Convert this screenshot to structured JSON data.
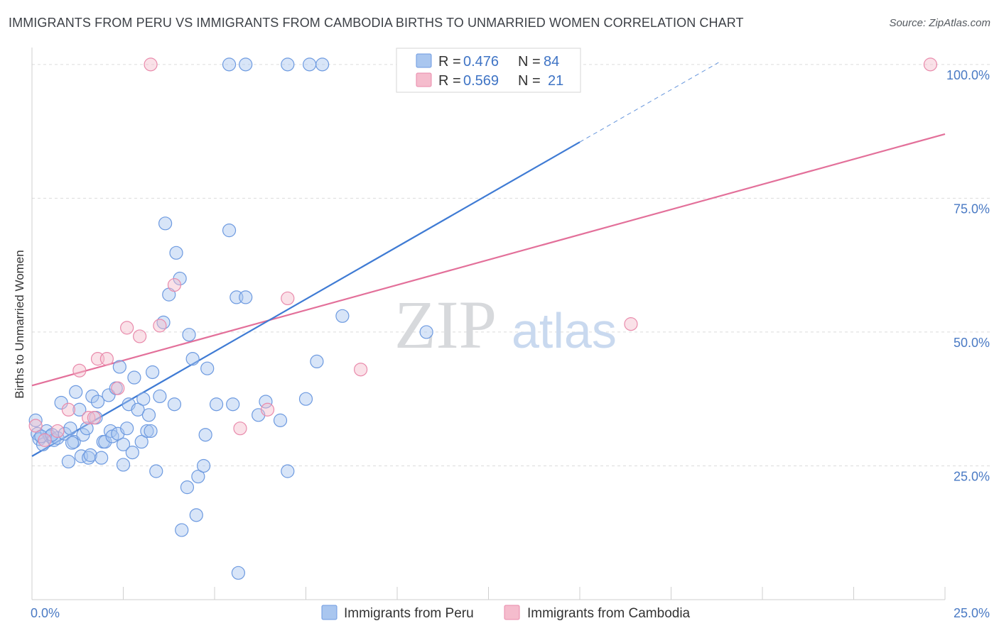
{
  "title": "IMMIGRANTS FROM PERU VS IMMIGRANTS FROM CAMBODIA BIRTHS TO UNMARRIED WOMEN CORRELATION CHART",
  "source": "Source: ZipAtlas.com",
  "watermark": {
    "part1": "ZIP",
    "part2": "atlas"
  },
  "colors": {
    "peru": "#3f7bd4",
    "cambodia": "#e3709a",
    "peru_fill": "#a9c6ef",
    "cambodia_fill": "#f5bccd"
  },
  "chart_data": {
    "type": "scatter",
    "title": "IMMIGRANTS FROM PERU VS IMMIGRANTS FROM CAMBODIA BIRTHS TO UNMARRIED WOMEN CORRELATION CHART",
    "xlabel": "",
    "ylabel": "Births to Unmarried Women",
    "xlim": [
      0,
      25
    ],
    "ylim": [
      0,
      102.5
    ],
    "x_tick_labels": [
      "0.0%",
      "25.0%"
    ],
    "y_tick_labels": [
      "25.0%",
      "50.0%",
      "75.0%",
      "100.0%"
    ],
    "y_ticks": [
      25,
      50,
      75,
      100
    ],
    "grid": true,
    "legend_position": "top-center",
    "legend": [
      {
        "label_r": "R =",
        "r": "0.476",
        "label_n": "N =",
        "n": "84"
      },
      {
        "label_r": "R =",
        "r": "0.569",
        "label_n": "N =",
        "n": "21"
      }
    ],
    "bottom_legend": [
      "Immigrants from Peru",
      "Immigrants from Cambodia"
    ],
    "series": [
      {
        "name": "Immigrants from Peru",
        "r": 0.476,
        "n": 84,
        "trend": {
          "x0": 0,
          "y0": 26.8,
          "x1": 15,
          "y1": 85.5,
          "dash_to_x": 18.8
        },
        "points": [
          [
            0.1,
            33.5
          ],
          [
            0.15,
            31.0
          ],
          [
            0.2,
            30.0
          ],
          [
            0.3,
            29.0
          ],
          [
            0.4,
            31.5
          ],
          [
            0.5,
            30.5
          ],
          [
            0.6,
            29.8
          ],
          [
            0.7,
            30.2
          ],
          [
            0.8,
            36.8
          ],
          [
            0.9,
            31.0
          ],
          [
            1.0,
            25.8
          ],
          [
            1.05,
            32.0
          ],
          [
            1.15,
            29.5
          ],
          [
            1.2,
            38.8
          ],
          [
            1.3,
            35.5
          ],
          [
            1.35,
            26.8
          ],
          [
            1.4,
            30.8
          ],
          [
            1.5,
            32.0
          ],
          [
            1.55,
            26.5
          ],
          [
            1.6,
            27.0
          ],
          [
            1.65,
            38.0
          ],
          [
            1.75,
            34.0
          ],
          [
            1.8,
            37.0
          ],
          [
            1.9,
            26.5
          ],
          [
            1.95,
            29.5
          ],
          [
            2.0,
            29.5
          ],
          [
            2.1,
            38.2
          ],
          [
            2.15,
            31.5
          ],
          [
            2.2,
            30.5
          ],
          [
            2.3,
            39.5
          ],
          [
            2.35,
            31.0
          ],
          [
            2.4,
            43.5
          ],
          [
            2.5,
            29.0
          ],
          [
            2.5,
            25.2
          ],
          [
            2.6,
            32.0
          ],
          [
            2.65,
            36.5
          ],
          [
            2.75,
            27.5
          ],
          [
            2.8,
            41.5
          ],
          [
            2.9,
            35.5
          ],
          [
            3.0,
            29.5
          ],
          [
            3.05,
            37.5
          ],
          [
            3.15,
            31.5
          ],
          [
            3.2,
            34.5
          ],
          [
            3.25,
            31.5
          ],
          [
            3.3,
            42.5
          ],
          [
            3.4,
            24.0
          ],
          [
            3.5,
            38.0
          ],
          [
            3.6,
            51.8
          ],
          [
            3.65,
            70.3
          ],
          [
            3.75,
            57.0
          ],
          [
            3.9,
            36.5
          ],
          [
            3.95,
            64.8
          ],
          [
            4.05,
            60.0
          ],
          [
            4.1,
            13.0
          ],
          [
            4.25,
            21.0
          ],
          [
            4.3,
            49.5
          ],
          [
            4.4,
            45.0
          ],
          [
            4.5,
            15.8
          ],
          [
            4.55,
            23.0
          ],
          [
            4.7,
            25.0
          ],
          [
            4.75,
            30.8
          ],
          [
            4.8,
            43.2
          ],
          [
            5.05,
            36.5
          ],
          [
            5.4,
            69.0
          ],
          [
            5.5,
            36.5
          ],
          [
            5.6,
            56.5
          ],
          [
            5.65,
            5.0
          ],
          [
            5.85,
            56.5
          ],
          [
            6.2,
            34.5
          ],
          [
            6.4,
            37.0
          ],
          [
            6.8,
            33.5
          ],
          [
            7.0,
            24.0
          ],
          [
            7.5,
            37.5
          ],
          [
            7.8,
            44.5
          ],
          [
            8.5,
            53.0
          ],
          [
            10.8,
            50.0
          ],
          [
            5.4,
            100.0
          ],
          [
            5.85,
            100.0
          ],
          [
            7.0,
            100.0
          ],
          [
            7.6,
            100.0
          ],
          [
            7.95,
            100.0
          ],
          [
            0.25,
            30.5
          ],
          [
            1.1,
            29.3
          ],
          [
            0.55,
            30.8
          ]
        ]
      },
      {
        "name": "Immigrants from Cambodia",
        "r": 0.569,
        "n": 21,
        "trend": {
          "x0": 0,
          "y0": 40.0,
          "x1": 25,
          "y1": 87.0
        },
        "points": [
          [
            0.1,
            32.5
          ],
          [
            0.35,
            29.8
          ],
          [
            0.7,
            31.5
          ],
          [
            1.0,
            35.5
          ],
          [
            1.3,
            42.8
          ],
          [
            1.55,
            34.0
          ],
          [
            1.7,
            34.0
          ],
          [
            1.8,
            45.0
          ],
          [
            2.05,
            45.0
          ],
          [
            2.35,
            39.5
          ],
          [
            2.6,
            50.8
          ],
          [
            2.95,
            49.2
          ],
          [
            3.25,
            100.0
          ],
          [
            3.5,
            51.2
          ],
          [
            3.9,
            58.8
          ],
          [
            5.7,
            32.0
          ],
          [
            6.45,
            35.5
          ],
          [
            7.0,
            56.3
          ],
          [
            9.0,
            43.0
          ],
          [
            16.4,
            51.5
          ],
          [
            24.6,
            100.0
          ]
        ]
      }
    ]
  }
}
